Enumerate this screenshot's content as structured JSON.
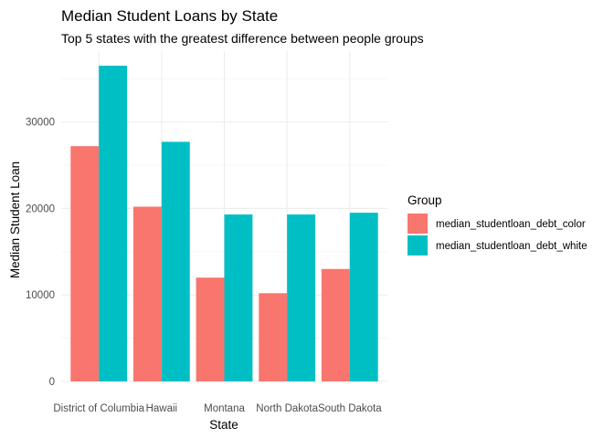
{
  "chart_data": {
    "type": "bar",
    "title": "Median Student Loans by State",
    "subtitle": "Top 5 states with the greatest difference between people groups",
    "xlabel": "State",
    "ylabel": "Median Student Loan",
    "categories": [
      "District of Columbia",
      "Hawaii",
      "Montana",
      "North Dakota",
      "South Dakota"
    ],
    "series": [
      {
        "name": "median_studentloan_debt_color",
        "color": "#F8766D",
        "values": [
          27200,
          20200,
          12000,
          10200,
          13000
        ]
      },
      {
        "name": "median_studentloan_debt_white",
        "color": "#00BFC4",
        "values": [
          36500,
          27700,
          19300,
          19300,
          19500
        ]
      }
    ],
    "ylim": [
      0,
      36500
    ],
    "yticks": [
      0,
      10000,
      20000,
      30000
    ],
    "ytick_labels": [
      "0",
      "10000",
      "20000",
      "30000"
    ],
    "grid": true,
    "legend": {
      "title": "Group",
      "placement": "right"
    }
  }
}
